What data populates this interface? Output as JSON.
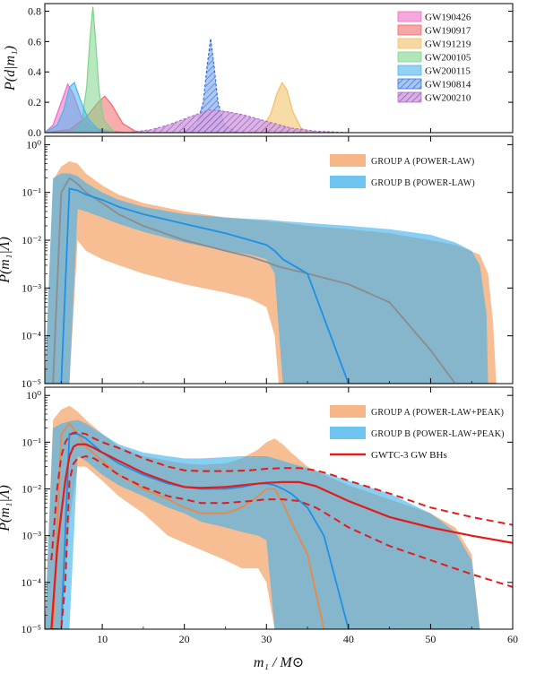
{
  "chart_data": [
    {
      "panel": "top",
      "type": "area",
      "ylabel": "P(d|m₁)",
      "xlim": [
        3,
        60
      ],
      "ylim": [
        0,
        0.85
      ],
      "yticks": [
        "0.0",
        "0.2",
        "0.4",
        "0.6",
        "0.8"
      ],
      "legend_position": "top-right",
      "series": [
        {
          "name": "GW190426",
          "color": "#f06cc3",
          "x": [
            3,
            4,
            5,
            5.8,
            6.5,
            7.5,
            9,
            11,
            13
          ],
          "values": [
            0.0,
            0.05,
            0.2,
            0.32,
            0.25,
            0.1,
            0.03,
            0.01,
            0.0
          ]
        },
        {
          "name": "GW190917",
          "color": "#ef6a6a",
          "x": [
            3,
            6,
            8,
            9.5,
            10.3,
            11.2,
            12.5,
            14,
            16
          ],
          "values": [
            0.0,
            0.02,
            0.1,
            0.2,
            0.24,
            0.18,
            0.06,
            0.01,
            0.0
          ]
        },
        {
          "name": "GW191219",
          "color": "#f0c060",
          "x": [
            28,
            29.5,
            30.5,
            31.3,
            31.9,
            32.5,
            33.2,
            34.2,
            35.5
          ],
          "values": [
            0.0,
            0.03,
            0.12,
            0.26,
            0.33,
            0.28,
            0.14,
            0.03,
            0.0
          ]
        },
        {
          "name": "GW200105",
          "color": "#7fd38a",
          "x": [
            6.5,
            7.5,
            8.1,
            8.5,
            8.85,
            9.2,
            9.6,
            10.2,
            11.5
          ],
          "values": [
            0.0,
            0.07,
            0.3,
            0.62,
            0.83,
            0.6,
            0.28,
            0.08,
            0.0
          ]
        },
        {
          "name": "GW200115",
          "color": "#4ab4ee",
          "x": [
            3,
            4.5,
            5.3,
            6,
            6.6,
            7.3,
            8.3,
            9.5,
            11
          ],
          "values": [
            0.0,
            0.05,
            0.15,
            0.3,
            0.33,
            0.22,
            0.09,
            0.02,
            0.0
          ]
        },
        {
          "name": "GW190814",
          "color": "#3b6fd8",
          "hatch": true,
          "x": [
            20,
            21.5,
            22.3,
            22.8,
            23.2,
            23.6,
            24.1,
            24.9,
            26.5
          ],
          "values": [
            0.0,
            0.05,
            0.2,
            0.45,
            0.62,
            0.45,
            0.2,
            0.05,
            0.0
          ]
        },
        {
          "name": "GW200210",
          "color": "#b070c8",
          "hatch": true,
          "x": [
            13,
            16,
            18,
            20,
            22,
            23,
            25,
            27,
            29,
            31,
            33,
            36,
            40
          ],
          "values": [
            0.0,
            0.02,
            0.05,
            0.09,
            0.13,
            0.15,
            0.14,
            0.12,
            0.09,
            0.06,
            0.03,
            0.01,
            0.0
          ]
        }
      ]
    },
    {
      "panel": "middle",
      "type": "area",
      "ylabel": "P(m₁|Λ)",
      "yscale": "log",
      "xlim": [
        3,
        60
      ],
      "ylim": [
        1e-05,
        1.5
      ],
      "yticks": [
        "10⁻⁵",
        "10⁻⁴",
        "10⁻³",
        "10⁻²",
        "10⁻¹",
        "10⁰"
      ],
      "legend_position": "top-right",
      "series": [
        {
          "name": "GROUP A (POWER-LAW)",
          "color": "#f4a46a",
          "x": [
            3,
            4,
            5,
            6,
            7,
            8,
            10,
            12,
            15,
            20,
            25,
            28,
            30,
            31,
            31.5,
            35,
            40,
            45,
            50,
            53,
            56,
            57,
            57.6,
            58
          ],
          "upper": [
            1e-05,
            0.18,
            0.35,
            0.45,
            0.4,
            0.25,
            0.14,
            0.09,
            0.06,
            0.04,
            0.03,
            0.027,
            0.025,
            0.024,
            0.024,
            0.02,
            0.017,
            0.014,
            0.01,
            0.008,
            0.005,
            0.002,
            0.0002,
            1e-05
          ],
          "lower": [
            1e-05,
            1e-05,
            1e-05,
            1e-05,
            0.01,
            0.006,
            0.004,
            0.003,
            0.002,
            0.0012,
            0.0008,
            0.0006,
            0.0004,
            0.0001,
            1e-05,
            1e-05,
            1e-05,
            1e-05,
            1e-05,
            1e-05,
            1e-05,
            1e-05,
            1e-05,
            1e-05
          ],
          "median_color": "#8c8c8c",
          "median": [
            1e-05,
            1e-05,
            0.1,
            0.2,
            0.15,
            0.1,
            0.06,
            0.035,
            0.02,
            0.01,
            0.006,
            0.0045,
            0.0035,
            0.003,
            0.0028,
            0.002,
            0.0012,
            0.0005,
            5e-05,
            1e-05,
            1e-05,
            1e-05,
            1e-05,
            1e-05
          ]
        },
        {
          "name": "GROUP B (POWER-LAW)",
          "color": "#3fb2ee",
          "x": [
            3,
            4,
            5,
            6,
            7,
            8,
            10,
            12,
            15,
            20,
            25,
            28,
            30,
            31,
            32,
            35,
            40,
            45,
            50,
            53,
            55,
            56,
            56.8,
            57
          ],
          "upper": [
            1e-05,
            0.2,
            0.25,
            0.25,
            0.22,
            0.16,
            0.1,
            0.07,
            0.05,
            0.035,
            0.03,
            0.028,
            0.027,
            0.026,
            0.025,
            0.023,
            0.02,
            0.017,
            0.013,
            0.009,
            0.006,
            0.003,
            0.0003,
            1e-05
          ],
          "lower": [
            1e-05,
            1e-05,
            1e-05,
            1e-05,
            0.045,
            0.04,
            0.03,
            0.022,
            0.015,
            0.009,
            0.006,
            0.005,
            0.004,
            0.002,
            1e-05,
            1e-05,
            1e-05,
            1e-05,
            1e-05,
            1e-05,
            1e-05,
            1e-05,
            1e-05,
            1e-05
          ],
          "median_color": "#1e90e6",
          "median": [
            1e-05,
            1e-05,
            1e-05,
            0.12,
            0.11,
            0.09,
            0.07,
            0.05,
            0.035,
            0.022,
            0.014,
            0.01,
            0.008,
            0.006,
            0.004,
            0.002,
            1e-05,
            1e-05,
            1e-05,
            1e-05,
            1e-05,
            1e-05,
            1e-05,
            1e-05
          ]
        }
      ]
    },
    {
      "panel": "bottom",
      "type": "area",
      "ylabel": "P(m₁|Λ)",
      "xlabel": "m₁ / M⊙",
      "yscale": "log",
      "xlim": [
        3,
        60
      ],
      "ylim": [
        1e-05,
        1.5
      ],
      "xticks": [
        "10",
        "20",
        "30",
        "40",
        "50",
        "60"
      ],
      "yticks": [
        "10⁻⁵",
        "10⁻⁴",
        "10⁻³",
        "10⁻²",
        "10⁻¹",
        "10⁰"
      ],
      "legend_position": "top-right",
      "series": [
        {
          "name": "GROUP A (POWER-LAW+PEAK)",
          "color": "#f4a46a",
          "x": [
            3,
            4,
            5,
            6,
            7,
            8,
            10,
            12,
            15,
            18,
            20,
            22,
            25,
            27,
            29,
            30,
            31,
            32,
            33,
            35,
            37,
            40,
            45,
            50,
            53,
            55,
            56
          ],
          "upper": [
            1e-05,
            0.3,
            0.5,
            0.6,
            0.45,
            0.3,
            0.15,
            0.08,
            0.05,
            0.04,
            0.035,
            0.033,
            0.035,
            0.045,
            0.07,
            0.1,
            0.12,
            0.09,
            0.06,
            0.03,
            0.02,
            0.012,
            0.006,
            0.003,
            0.0015,
            0.0004,
            1e-05
          ],
          "lower": [
            1e-05,
            1e-05,
            1e-05,
            0.002,
            0.03,
            0.03,
            0.015,
            0.007,
            0.003,
            0.001,
            0.0007,
            0.0005,
            0.0003,
            0.0002,
            0.0002,
            0.0001,
            1e-05,
            1e-05,
            1e-05,
            1e-05,
            1e-05,
            1e-05,
            1e-05,
            1e-05,
            1e-05,
            1e-05,
            1e-05
          ],
          "median_color": "#e8894a",
          "median": [
            1e-05,
            1e-05,
            0.15,
            0.25,
            0.15,
            0.08,
            0.04,
            0.02,
            0.01,
            0.006,
            0.004,
            0.003,
            0.003,
            0.004,
            0.007,
            0.01,
            0.01,
            0.005,
            0.002,
            0.0004,
            1e-05,
            1e-05,
            1e-05,
            1e-05,
            1e-05,
            1e-05,
            1e-05
          ]
        },
        {
          "name": "GROUP B (POWER-LAW+PEAK)",
          "color": "#3fb2ee",
          "x": [
            3,
            4,
            5,
            6,
            7,
            8,
            10,
            12,
            15,
            18,
            20,
            22,
            25,
            27,
            29,
            30,
            31,
            32,
            33,
            35,
            37,
            40,
            45,
            50,
            53,
            55,
            56
          ],
          "upper": [
            1e-05,
            0.2,
            0.25,
            0.28,
            0.3,
            0.25,
            0.15,
            0.09,
            0.06,
            0.05,
            0.045,
            0.045,
            0.048,
            0.05,
            0.05,
            0.05,
            0.045,
            0.04,
            0.035,
            0.028,
            0.022,
            0.015,
            0.008,
            0.003,
            0.0012,
            0.0003,
            1e-05
          ],
          "lower": [
            1e-05,
            1e-05,
            1e-05,
            1e-05,
            0.05,
            0.04,
            0.02,
            0.012,
            0.007,
            0.004,
            0.003,
            0.002,
            0.0015,
            0.0012,
            0.001,
            0.0008,
            1e-05,
            1e-05,
            1e-05,
            1e-05,
            1e-05,
            1e-05,
            1e-05,
            1e-05,
            1e-05,
            1e-05,
            1e-05
          ],
          "median_color": "#1e90e6",
          "median": [
            1e-05,
            1e-05,
            1e-05,
            0.15,
            0.15,
            0.12,
            0.06,
            0.035,
            0.02,
            0.013,
            0.011,
            0.01,
            0.01,
            0.011,
            0.013,
            0.013,
            0.012,
            0.01,
            0.008,
            0.004,
            0.001,
            1e-05,
            1e-05,
            1e-05,
            1e-05,
            1e-05,
            1e-05
          ]
        },
        {
          "name": "GWTC-3 GW BHs",
          "color": "#e21c1c",
          "x": [
            3.8,
            4.5,
            5,
            5.5,
            6,
            6.5,
            7,
            8,
            9,
            10,
            12,
            15,
            18,
            20,
            22,
            25,
            28,
            30,
            32,
            34,
            36,
            38,
            40,
            45,
            50,
            55,
            60
          ],
          "median": [
            1e-05,
            0.0005,
            0.003,
            0.015,
            0.05,
            0.08,
            0.09,
            0.09,
            0.075,
            0.06,
            0.04,
            0.022,
            0.014,
            0.011,
            0.0105,
            0.011,
            0.0125,
            0.0135,
            0.014,
            0.014,
            0.0115,
            0.008,
            0.0055,
            0.0025,
            0.0015,
            0.001,
            0.0007
          ],
          "upper": [
            0.0003,
            0.01,
            0.05,
            0.1,
            0.14,
            0.16,
            0.16,
            0.15,
            0.12,
            0.1,
            0.075,
            0.045,
            0.03,
            0.025,
            0.024,
            0.024,
            0.025,
            0.027,
            0.028,
            0.028,
            0.025,
            0.02,
            0.015,
            0.008,
            0.004,
            0.0025,
            0.0017
          ],
          "lower": [
            1e-05,
            1e-05,
            1e-05,
            0.0001,
            0.015,
            0.035,
            0.045,
            0.05,
            0.045,
            0.035,
            0.02,
            0.011,
            0.007,
            0.006,
            0.005,
            0.005,
            0.0055,
            0.006,
            0.006,
            0.0055,
            0.004,
            0.0025,
            0.0015,
            0.0006,
            0.0003,
            0.00015,
            8e-05
          ]
        }
      ]
    }
  ]
}
